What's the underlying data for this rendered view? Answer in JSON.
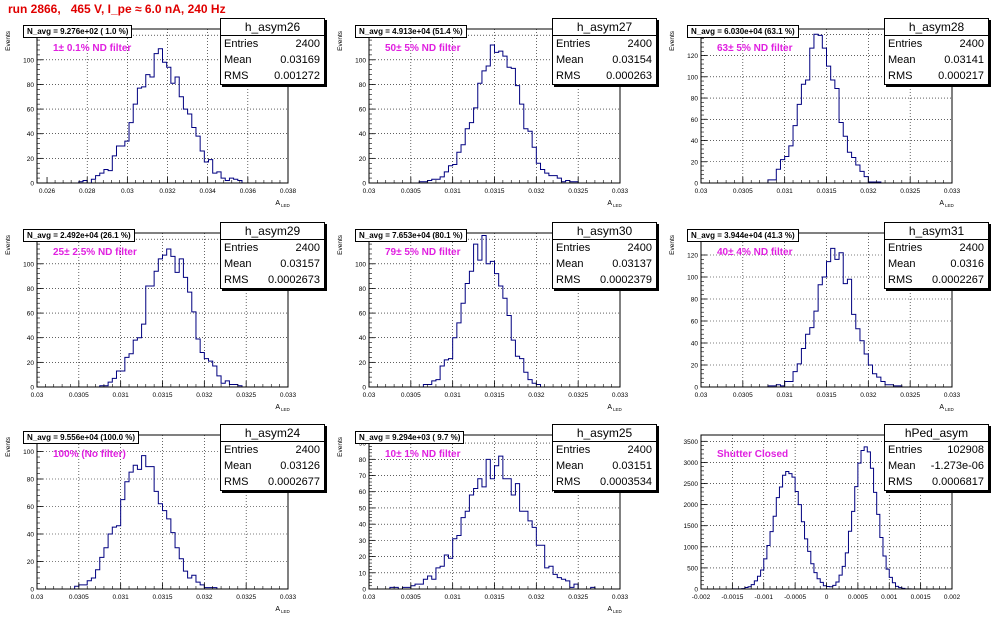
{
  "canvas_title": "run 2866,   465 V, I_pe ≈ 6.0 nA, 240 Hz",
  "colors": {
    "title": "#e00000",
    "annotation": "#e020e0",
    "histogram": "#000080",
    "grid": "#000000"
  },
  "stat_labels": {
    "entries": "Entries",
    "mean": "Mean",
    "rms": "RMS"
  },
  "chart_data": [
    {
      "type": "histogram",
      "name": "h_asym26",
      "ylabel": "Events",
      "xlabel": "A_LED",
      "navg_text": "N_avg = 9.276e+02 ( 1.0 %)",
      "filter_text": "1± 0.1% ND filter",
      "entries": "2400",
      "mean": "0.03169",
      "rms": "0.001272",
      "xlim": [
        0.0255,
        0.038
      ],
      "ylim": [
        0,
        125
      ],
      "xticks": [
        0.026,
        0.028,
        0.03,
        0.032,
        0.034,
        0.036,
        0.038
      ],
      "xtick_labels": [
        "0.026",
        "0.028",
        "0.03",
        "0.032",
        "0.034",
        "0.036",
        "0.038"
      ],
      "yticks": [
        0,
        20,
        40,
        60,
        80,
        100,
        120
      ],
      "ytick_labels": [
        "0",
        "20",
        "40",
        "60",
        "80",
        "100",
        "120"
      ],
      "dist": {
        "mu": 0.03169,
        "sigma": 0.00127,
        "peak": 100,
        "bins": 60
      }
    },
    {
      "type": "histogram",
      "name": "h_asym27",
      "ylabel": "Events",
      "xlabel": "A_LED",
      "navg_text": "N_avg = 4.913e+04 (51.4 %)",
      "filter_text": "50± 5% ND filter",
      "entries": "2400",
      "mean": "0.03154",
      "rms": "0.000263",
      "xlim": [
        0.03,
        0.033
      ],
      "ylim": [
        0,
        125
      ],
      "xticks": [
        0.03,
        0.0305,
        0.031,
        0.0315,
        0.032,
        0.0325,
        0.033
      ],
      "xtick_labels": [
        "0.03",
        "0.0305",
        "0.031",
        "0.0315",
        "0.032",
        "0.0325",
        "0.033"
      ],
      "yticks": [
        0,
        20,
        40,
        60,
        80,
        100,
        120
      ],
      "ytick_labels": [
        "0",
        "20",
        "40",
        "60",
        "80",
        "100",
        "120"
      ],
      "dist": {
        "mu": 0.03154,
        "sigma": 0.000263,
        "peak": 108,
        "bins": 60
      }
    },
    {
      "type": "histogram",
      "name": "h_asym28",
      "ylabel": "Events",
      "xlabel": "A_LED",
      "navg_text": "N_avg = 6.030e+04 (63.1 %)",
      "filter_text": "63± 5% ND filter",
      "entries": "2400",
      "mean": "0.03141",
      "rms": "0.000217",
      "xlim": [
        0.03,
        0.033
      ],
      "ylim": [
        0,
        145
      ],
      "xticks": [
        0.03,
        0.0305,
        0.031,
        0.0315,
        0.032,
        0.0325,
        0.033
      ],
      "xtick_labels": [
        "0.03",
        "0.0305",
        "0.031",
        "0.0315",
        "0.032",
        "0.0325",
        "0.033"
      ],
      "yticks": [
        0,
        20,
        40,
        60,
        80,
        100,
        120,
        140
      ],
      "ytick_labels": [
        "0",
        "20",
        "40",
        "60",
        "80",
        "100",
        "120",
        "140"
      ],
      "dist": {
        "mu": 0.03141,
        "sigma": 0.000217,
        "peak": 128,
        "bins": 60
      }
    },
    {
      "type": "histogram",
      "name": "h_asym29",
      "ylabel": "Events",
      "xlabel": "A_LED",
      "navg_text": "N_avg = 2.492e+04 (26.1 %)",
      "filter_text": "25± 2.5% ND filter",
      "entries": "2400",
      "mean": "0.03157",
      "rms": "0.0002673",
      "xlim": [
        0.03,
        0.033
      ],
      "ylim": [
        0,
        125
      ],
      "xticks": [
        0.03,
        0.0305,
        0.031,
        0.0315,
        0.032,
        0.0325,
        0.033
      ],
      "xtick_labels": [
        "0.03",
        "0.0305",
        "0.031",
        "0.0315",
        "0.032",
        "0.0325",
        "0.033"
      ],
      "yticks": [
        0,
        20,
        40,
        60,
        80,
        100,
        120
      ],
      "ytick_labels": [
        "0",
        "20",
        "40",
        "60",
        "80",
        "100",
        "120"
      ],
      "dist": {
        "mu": 0.03157,
        "sigma": 0.000267,
        "peak": 110,
        "bins": 60
      }
    },
    {
      "type": "histogram",
      "name": "h_asym30",
      "ylabel": "Events",
      "xlabel": "A_LED",
      "navg_text": "N_avg = 7.653e+04 (80.1 %)",
      "filter_text": "79± 5% ND filter",
      "entries": "2400",
      "mean": "0.03137",
      "rms": "0.0002379",
      "xlim": [
        0.03,
        0.033
      ],
      "ylim": [
        0,
        125
      ],
      "xticks": [
        0.03,
        0.0305,
        0.031,
        0.0315,
        0.032,
        0.0325,
        0.033
      ],
      "xtick_labels": [
        "0.03",
        "0.0305",
        "0.031",
        "0.0315",
        "0.032",
        "0.0325",
        "0.033"
      ],
      "yticks": [
        0,
        20,
        40,
        60,
        80,
        100,
        120
      ],
      "ytick_labels": [
        "0",
        "20",
        "40",
        "60",
        "80",
        "100",
        "120"
      ],
      "dist": {
        "mu": 0.03137,
        "sigma": 0.000238,
        "peak": 115,
        "bins": 60
      }
    },
    {
      "type": "histogram",
      "name": "h_asym31",
      "ylabel": "Events",
      "xlabel": "A_LED",
      "navg_text": "N_avg = 3.944e+04 (41.3 %)",
      "filter_text": "40± 4% ND filter",
      "entries": "2400",
      "mean": "0.0316",
      "rms": "0.0002267",
      "xlim": [
        0.03,
        0.033
      ],
      "ylim": [
        0,
        140
      ],
      "xticks": [
        0.03,
        0.0305,
        0.031,
        0.0315,
        0.032,
        0.0325,
        0.033
      ],
      "xtick_labels": [
        "0.03",
        "0.0305",
        "0.031",
        "0.0315",
        "0.032",
        "0.0325",
        "0.033"
      ],
      "yticks": [
        0,
        20,
        40,
        60,
        80,
        100,
        120
      ],
      "ytick_labels": [
        "0",
        "20",
        "40",
        "60",
        "80",
        "100",
        "120"
      ],
      "dist": {
        "mu": 0.0316,
        "sigma": 0.000227,
        "peak": 122,
        "bins": 60
      }
    },
    {
      "type": "histogram",
      "name": "h_asym24",
      "ylabel": "Events",
      "xlabel": "A_LED",
      "navg_text": "N_avg = 9.556e+04 (100.0 %)",
      "filter_text": "100% (No filter)",
      "entries": "2400",
      "mean": "0.03126",
      "rms": "0.0002677",
      "xlim": [
        0.03,
        0.033
      ],
      "ylim": [
        0,
        112
      ],
      "xticks": [
        0.03,
        0.0305,
        0.031,
        0.0315,
        0.032,
        0.0325,
        0.033
      ],
      "xtick_labels": [
        "0.03",
        "0.0305",
        "0.031",
        "0.0315",
        "0.032",
        "0.0325",
        "0.033"
      ],
      "yticks": [
        0,
        20,
        40,
        60,
        80,
        100
      ],
      "ytick_labels": [
        "0",
        "20",
        "40",
        "60",
        "80",
        "100"
      ],
      "dist": {
        "mu": 0.03126,
        "sigma": 0.000268,
        "peak": 95,
        "bins": 60
      }
    },
    {
      "type": "histogram",
      "name": "h_asym25",
      "ylabel": "Events",
      "xlabel": "A_LED",
      "navg_text": "N_avg = 9.294e+03 ( 9.7 %)",
      "filter_text": "10± 1% ND filter",
      "entries": "2400",
      "mean": "0.03151",
      "rms": "0.0003534",
      "xlim": [
        0.03,
        0.033
      ],
      "ylim": [
        0,
        95
      ],
      "xticks": [
        0.03,
        0.0305,
        0.031,
        0.0315,
        0.032,
        0.0325,
        0.033
      ],
      "xtick_labels": [
        "0.03",
        "0.0305",
        "0.031",
        "0.0315",
        "0.032",
        "0.0325",
        "0.033"
      ],
      "yticks": [
        0,
        10,
        20,
        30,
        40,
        50,
        60,
        70,
        80,
        90
      ],
      "ytick_labels": [
        "0",
        "10",
        "20",
        "30",
        "40",
        "50",
        "60",
        "70",
        "80",
        "90"
      ],
      "dist": {
        "mu": 0.03151,
        "sigma": 0.000353,
        "peak": 78,
        "bins": 60
      }
    },
    {
      "type": "histogram",
      "name": "hPed_asym",
      "ylabel": "",
      "xlabel": "",
      "navg_text": "",
      "filter_text": "Shutter Closed",
      "entries": "102908",
      "mean": "-1.273e-06",
      "rms": "0.0006817",
      "xlim": [
        -0.002,
        0.002
      ],
      "ylim": [
        0,
        3650
      ],
      "xticks": [
        -0.002,
        -0.0015,
        -0.001,
        -0.0005,
        0,
        0.0005,
        0.001,
        0.0015,
        0.002
      ],
      "xtick_labels": [
        "-0.002",
        "-0.0015",
        "-0.001",
        "-0.0005",
        "0",
        "0.0005",
        "0.001",
        "0.0015",
        "0.002"
      ],
      "yticks": [
        0,
        500,
        1000,
        1500,
        2000,
        2500,
        3000,
        3500
      ],
      "ytick_labels": [
        "0",
        "500",
        "1000",
        "1500",
        "2000",
        "2500",
        "3000",
        "3500"
      ],
      "dist": {
        "bimodal": [
          {
            "mu": -0.00061,
            "sigma": 0.00022,
            "peak": 2800
          },
          {
            "mu": 0.00062,
            "sigma": 0.00018,
            "peak": 3400
          }
        ],
        "bins": 80
      }
    }
  ]
}
